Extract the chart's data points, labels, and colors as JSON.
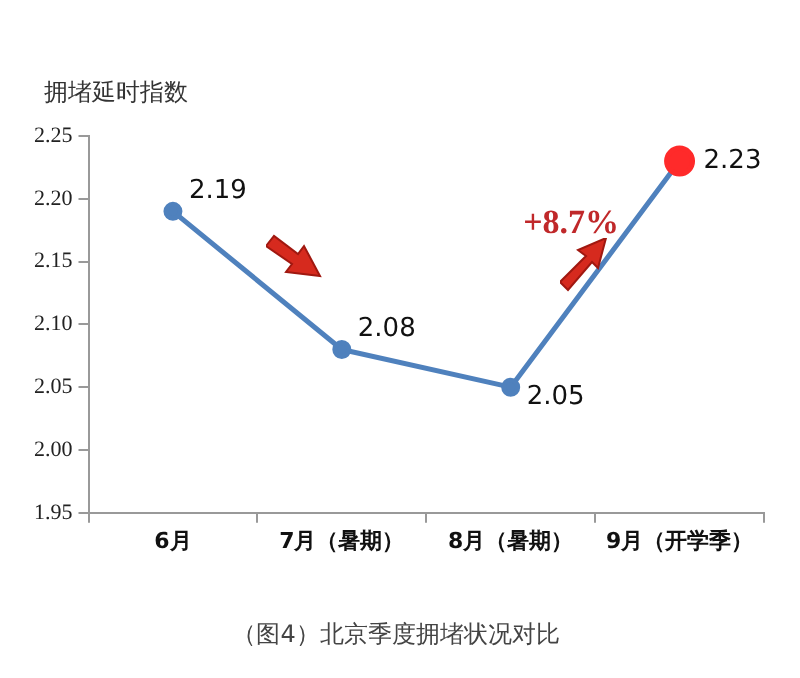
{
  "chart_data": {
    "type": "line",
    "title": "（图4）北京季度拥堵状况对比",
    "ylabel": "拥堵延时指数",
    "categories": [
      "6月",
      "7月（暑期）",
      "8月（暑期）",
      "9月（开学季）"
    ],
    "series": [
      {
        "color": "#4f81bd",
        "colors": [
          "#4f81bd",
          "#4f81bd",
          "#4f81bd",
          "#ff2a2a"
        ],
        "values": [
          2.19,
          2.08,
          2.05,
          2.23
        ]
      }
    ],
    "ylim": [
      1.95,
      2.25
    ],
    "yticks": [
      1.95,
      {
        "value": 2.0,
        "label": "2.00"
      },
      2.05,
      {
        "value": 2.1,
        "label": "2.10"
      },
      2.15,
      {
        "value": 2.2,
        "label": "2.20"
      },
      2.25
    ],
    "annotations": [
      "+8.7%"
    ],
    "data_labels": true,
    "grid": false,
    "legend": false,
    "marker": "circle",
    "line_style": "solid"
  }
}
